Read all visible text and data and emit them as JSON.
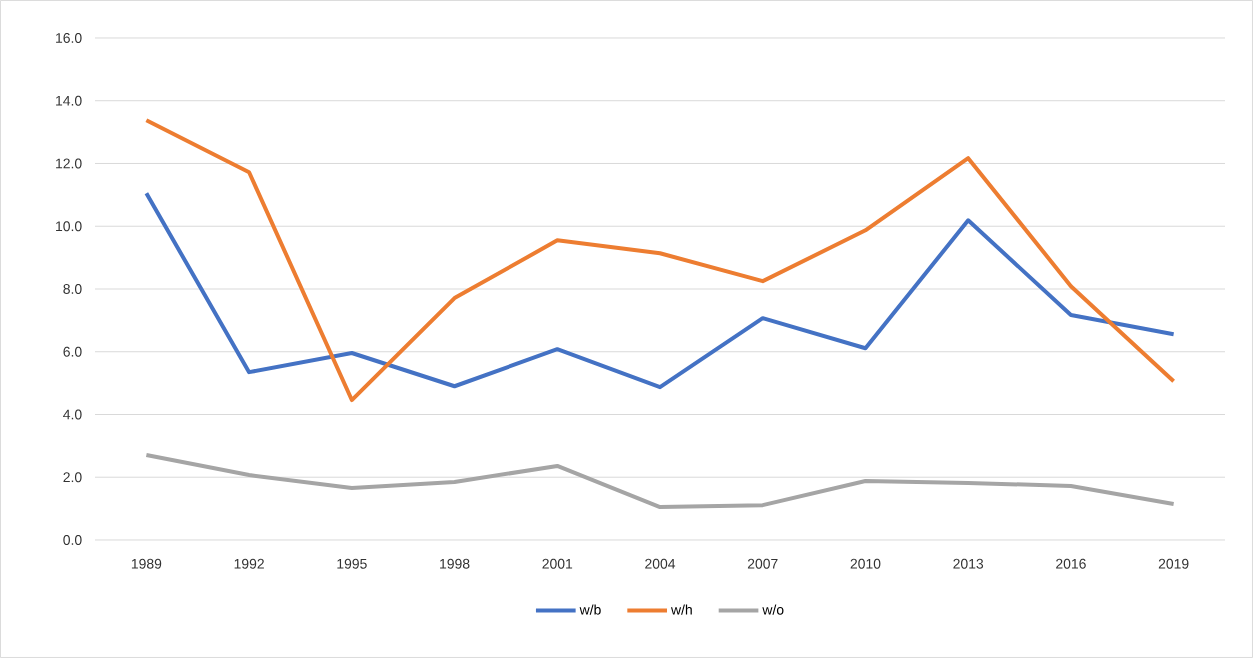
{
  "chart_data": {
    "type": "line",
    "categories": [
      "1989",
      "1992",
      "1995",
      "1998",
      "2001",
      "2004",
      "2007",
      "2010",
      "2013",
      "2016",
      "2019"
    ],
    "series": [
      {
        "name": "w/b",
        "color": "#4472c4",
        "values": [
          11.05,
          5.35,
          5.96,
          4.9,
          6.08,
          4.87,
          7.07,
          6.11,
          10.19,
          7.17,
          6.56
        ]
      },
      {
        "name": "w/h",
        "color": "#ed7d31",
        "values": [
          13.38,
          11.72,
          4.46,
          7.71,
          9.55,
          9.14,
          8.25,
          9.87,
          12.17,
          8.09,
          5.06
        ]
      },
      {
        "name": "w/o",
        "color": "#a5a5a5",
        "values": [
          2.71,
          2.07,
          1.66,
          1.85,
          2.36,
          1.05,
          1.11,
          1.88,
          1.82,
          1.72,
          1.15
        ]
      }
    ],
    "ylim": [
      0,
      16
    ],
    "yticks": [
      {
        "value": 0,
        "label": "0.0"
      },
      {
        "value": 2,
        "label": "2.0"
      },
      {
        "value": 4,
        "label": "4.0"
      },
      {
        "value": 6,
        "label": "6.0"
      },
      {
        "value": 8,
        "label": "8.0"
      },
      {
        "value": 10,
        "label": "10.0"
      },
      {
        "value": 12,
        "label": "12.0"
      },
      {
        "value": 14,
        "label": "14.0"
      },
      {
        "value": 16,
        "label": "16.0"
      }
    ],
    "grid": "y",
    "legend": "bottom"
  }
}
